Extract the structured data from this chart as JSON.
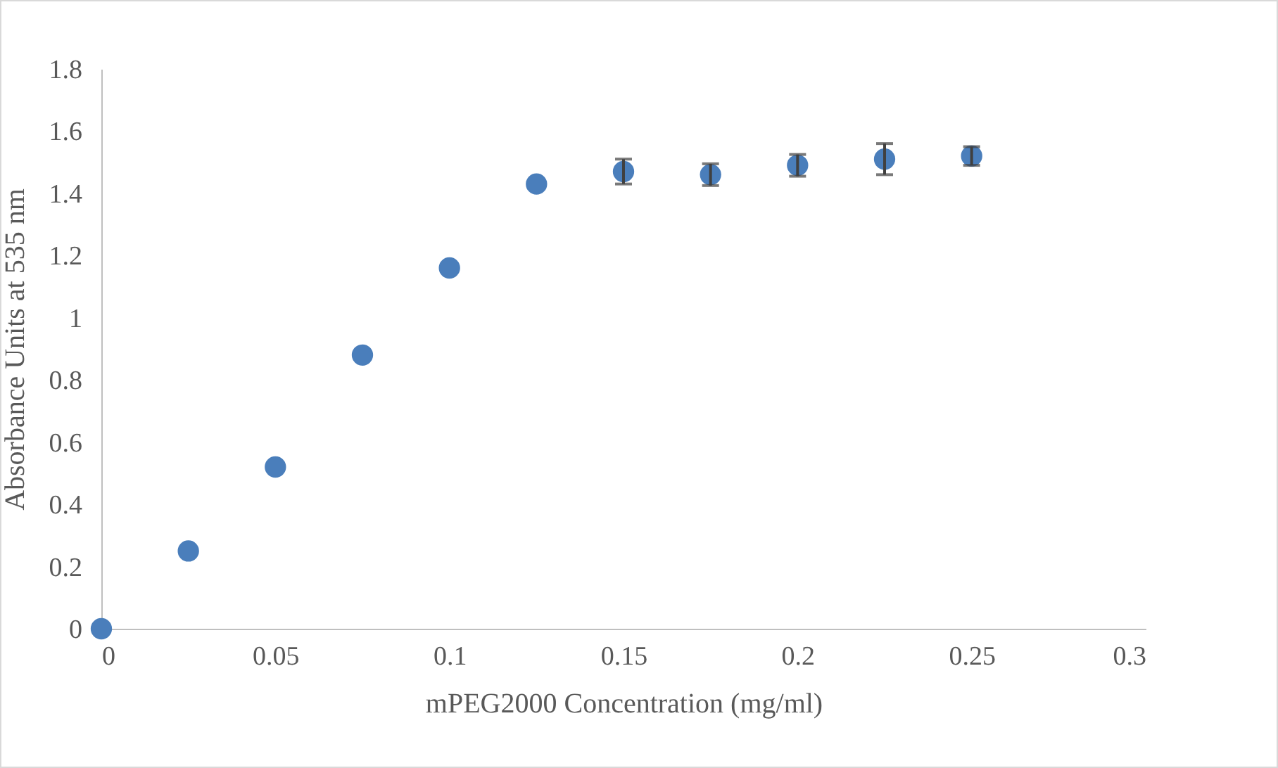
{
  "chart_data": {
    "type": "scatter",
    "xlabel": "mPEG2000 Concentration (mg/ml)",
    "ylabel": "Absorbance Units at 535 nm",
    "x": [
      0,
      0.025,
      0.05,
      0.075,
      0.1,
      0.125,
      0.15,
      0.175,
      0.2,
      0.225,
      0.25
    ],
    "series": [
      {
        "color": "#4a7ebb",
        "values": [
          0,
          0.25,
          0.52,
          0.88,
          1.16,
          1.43,
          1.47,
          1.46,
          1.49,
          1.51,
          1.52
        ],
        "errors": [
          null,
          null,
          null,
          null,
          null,
          null,
          0.04,
          0.035,
          0.035,
          0.05,
          0.03
        ]
      }
    ],
    "xlim": [
      0,
      0.3
    ],
    "xticks": [
      0,
      0.05,
      0.1,
      0.15,
      0.2,
      0.25,
      0.3
    ],
    "ylim": [
      0,
      1.8
    ],
    "yticks": [
      0,
      0.2,
      0.4,
      0.6,
      0.8,
      1,
      1.2,
      1.4,
      1.6,
      1.8
    ],
    "grid": false,
    "marker": "circle"
  }
}
